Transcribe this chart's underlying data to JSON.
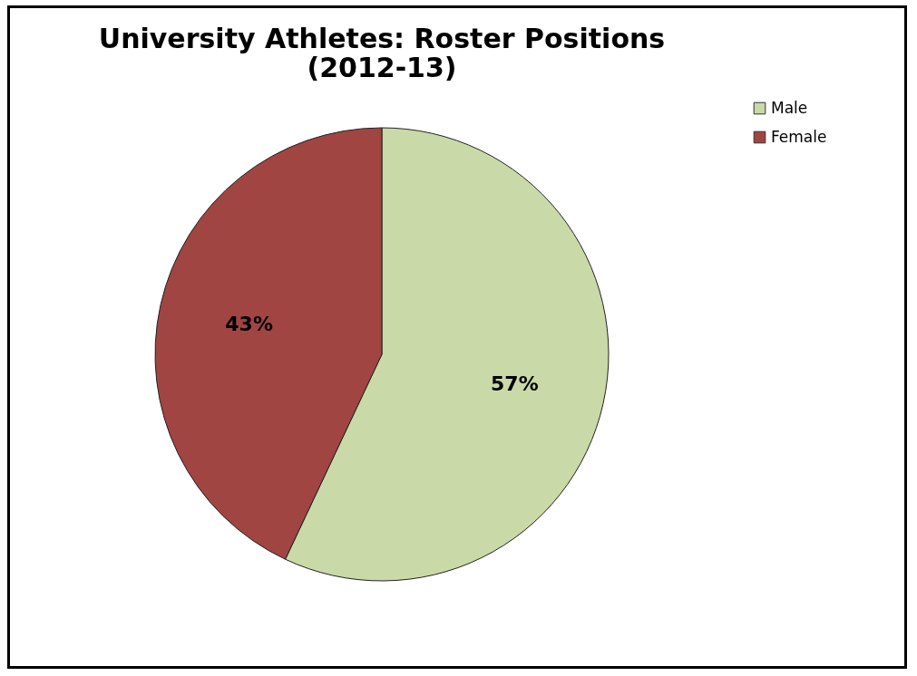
{
  "chart_data": {
    "type": "pie",
    "title": "University Athletes: Roster Positions\n(2012-13)",
    "categories": [
      "Male",
      "Female"
    ],
    "values": [
      57,
      43
    ],
    "colors": [
      "#c9d9a7",
      "#a04542"
    ],
    "value_labels": [
      "57%",
      "43%"
    ],
    "legend": "right"
  }
}
